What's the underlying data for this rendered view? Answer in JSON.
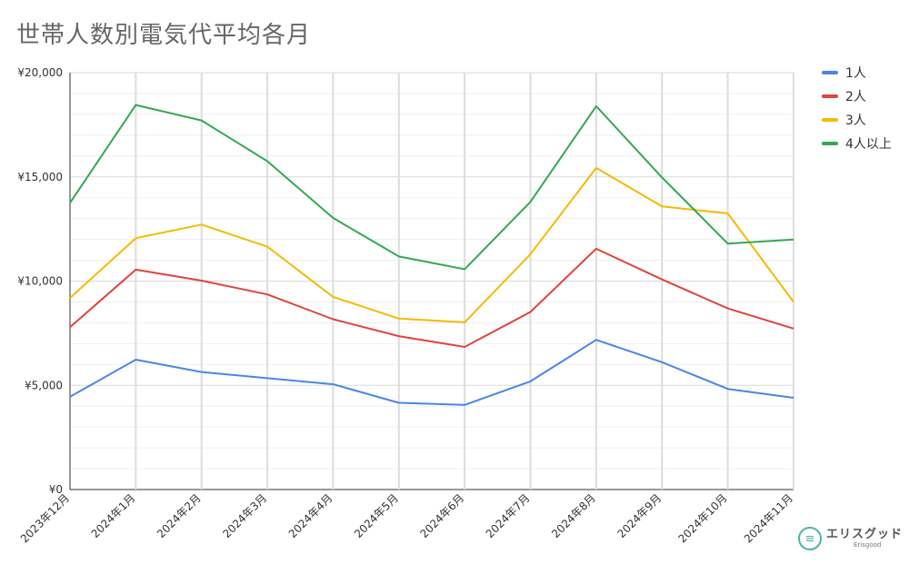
{
  "chart_data": {
    "type": "line",
    "title": "世帯人数別電気代平均各月",
    "categories": [
      "2023年12月",
      "2024年1月",
      "2024年2月",
      "2024年3月",
      "2024年4月",
      "2024年5月",
      "2024年6月",
      "2024年7月",
      "2024年8月",
      "2024年9月",
      "2024年10月",
      "2024年11月"
    ],
    "ylim": [
      0,
      20000
    ],
    "yticks": [
      "¥0",
      "¥5,000",
      "¥10,000",
      "¥15,000",
      "¥20,000"
    ],
    "ytick_values": [
      0,
      5000,
      10000,
      15000,
      20000
    ],
    "grid": true,
    "legend_position": "right",
    "series": [
      {
        "name": "1人",
        "color": "#4a86e8",
        "values": [
          4450,
          6230,
          5640,
          5340,
          5050,
          4160,
          4060,
          5190,
          7180,
          6110,
          4830,
          4400
        ]
      },
      {
        "name": "2人",
        "color": "#e0443c",
        "values": [
          7790,
          10550,
          10020,
          9360,
          8170,
          7360,
          6840,
          8520,
          11550,
          10080,
          8690,
          7720
        ]
      },
      {
        "name": "3人",
        "color": "#f4bb00",
        "values": [
          9190,
          12060,
          12710,
          11650,
          9240,
          8200,
          8020,
          11290,
          15430,
          13580,
          13250,
          9000
        ]
      },
      {
        "name": "4人以上",
        "color": "#34a853",
        "values": [
          13750,
          18450,
          17710,
          15750,
          13030,
          11180,
          10570,
          13800,
          18390,
          14970,
          11800,
          11990
        ]
      }
    ]
  },
  "logo": {
    "name": "エリスグッド",
    "sub": "Erisgood"
  }
}
